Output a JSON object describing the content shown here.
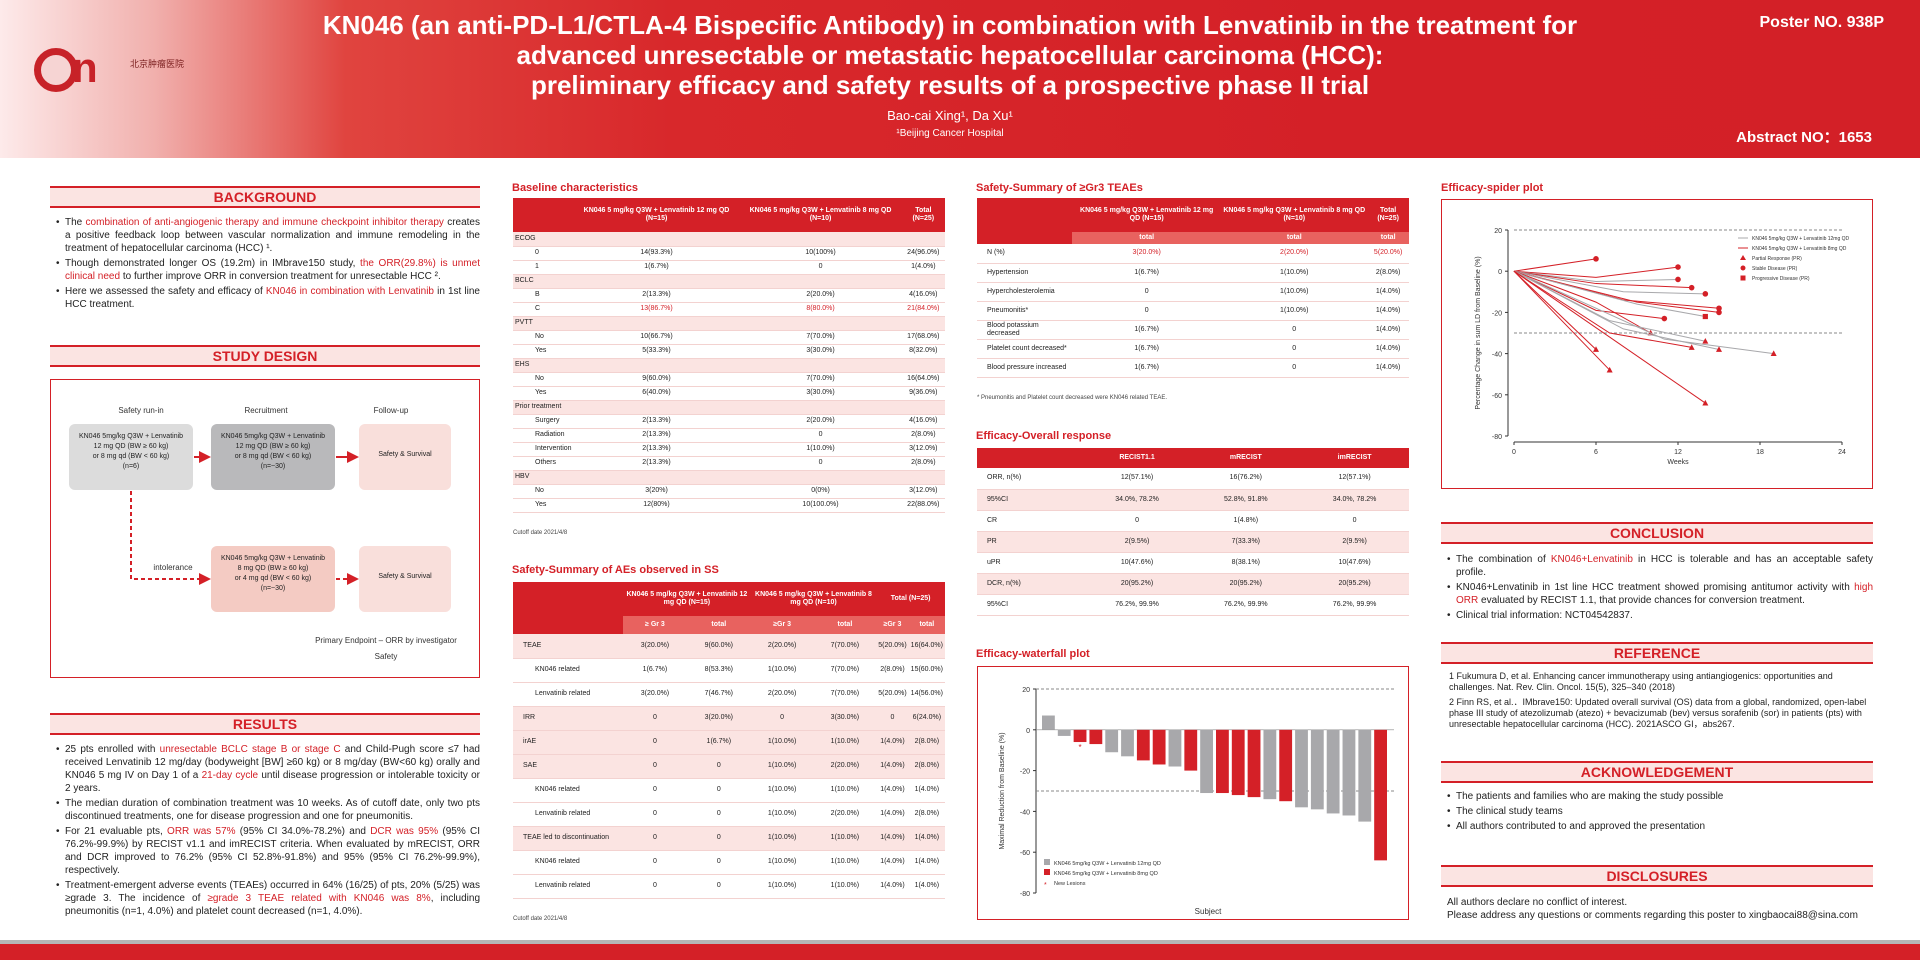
{
  "header": {
    "title_line1": "KN046 (an anti-PD-L1/CTLA-4 Bispecific Antibody) in combination with Lenvatinib in the treatment for",
    "title_line2": "advanced unresectable or metastatic hepatocellular carcinoma (HCC):",
    "title_line3": "preliminary efficacy and safety results of a prospective phase II trial",
    "authors": "Bao-cai Xing¹, Da Xu¹",
    "affiliation": "¹Beijing Cancer Hospital",
    "poster_no": "Poster NO. 938P",
    "abstract_no": "Abstract NO：1653",
    "logo_text": "北京肿瘤医院"
  },
  "background": {
    "heading": "BACKGROUND",
    "b1_pre": "The ",
    "b1_red": "combination of anti-angiogenic therapy and immune checkpoint inhibitor therapy",
    "b1_post": " creates a positive feedback loop between vascular normalization and immune remodeling in the treatment of hepatocellular carcinoma (HCC) ¹.",
    "b2_pre": "Though demonstrated longer OS (19.2m) in IMbrave150 study, ",
    "b2_red": "the ORR(29.8%) is unmet clinical need",
    "b2_post": " to further improve ORR in conversion treatment for unresectable HCC ².",
    "b3_pre": "Here we assessed the safety and efficacy of ",
    "b3_red": "KN046 in combination with Lenvatinib",
    "b3_post": " in 1st line HCC treatment."
  },
  "study_design": {
    "heading": "STUDY DESIGN",
    "col1": "Safety run-in",
    "col2": "Recruitment",
    "col3": "Follow-up",
    "box1": [
      "KN046 5mg/kg Q3W + Lenvatinib",
      "12 mg QD (BW ≥ 60 kg)",
      "or 8 mg qd (BW < 60 kg)",
      "(n=6)"
    ],
    "box2": [
      "KN046 5mg/kg Q3W + Lenvatinib",
      "12 mg QD (BW ≥ 60 kg)",
      "or 8 mg qd (BW < 60 kg)",
      "(n=~30)"
    ],
    "box3": "Safety & Survival",
    "box4": [
      "KN046 5mg/kg Q3W + Lenvatinib",
      "8 mg QD (BW ≥ 60 kg)",
      "or 4 mg qd (BW < 60 kg)",
      "(n=~30)"
    ],
    "box5": "Safety & Survival",
    "intolerance": "intolerance",
    "endpoint1": "Primary Endpoint – ORR by investigator",
    "endpoint2": "Safety"
  },
  "results": {
    "heading": "RESULTS",
    "r1_a": "25 pts enrolled with ",
    "r1_red1": "unresectable BCLC stage B or stage C",
    "r1_b": " and Child-Pugh score ≤7 had received Lenvatinib 12 mg/day (bodyweight [BW] ≥60 kg) or 8 mg/day (BW<60 kg) orally and KN046 5 mg IV on Day 1 of a ",
    "r1_red2": "21-day cycle",
    "r1_c": " until disease progression or intolerable toxicity or 2 years.",
    "r2": "The median duration of combination treatment was 10 weeks. As of cutoff date, only two pts discontinued treatments, one for disease progression and one for pneumonitis.",
    "r3_a": "For 21 evaluable pts, ",
    "r3_red1": "ORR was 57%",
    "r3_b": " (95% CI 34.0%-78.2%) and ",
    "r3_red2": "DCR was 95%",
    "r3_c": " (95% CI 76.2%-99.9%) by RECIST v1.1 and imRECIST criteria. When evaluated by mRECIST, ORR and DCR improved to 76.2% (95% CI 52.8%-91.8%) and 95% (95% CI 76.2%-99.9%), respectively.",
    "r4_a": "Treatment-emergent adverse events (TEAEs) occurred in 64% (16/25) of pts, 20% (5/25) was ≥grade 3. The incidence of ",
    "r4_red": "≥grade 3 TEAE related with KN046 was 8%",
    "r4_b": ", including pneumonitis (n=1, 4.0%) and platelet count decreased (n=1, 4.0%)."
  },
  "baseline": {
    "title": "Baseline characteristics",
    "headers": [
      "",
      "KN046 5 mg/kg Q3W + Lenvatinib 12 mg QD (N=15)",
      "KN046 5 mg/kg Q3W + Lenvatinib 8 mg QD (N=10)",
      "Total (N=25)"
    ],
    "rows": [
      {
        "t": "sub",
        "c": [
          "ECOG",
          "",
          "",
          ""
        ]
      },
      {
        "t": "row",
        "c": [
          "0",
          "14(93.3%)",
          "10(100%)",
          "24(96.0%)"
        ]
      },
      {
        "t": "row",
        "c": [
          "1",
          "1(6.7%)",
          "0",
          "1(4.0%)"
        ]
      },
      {
        "t": "sub",
        "c": [
          "BCLC",
          "",
          "",
          ""
        ]
      },
      {
        "t": "row",
        "c": [
          "B",
          "2(13.3%)",
          "2(20.0%)",
          "4(16.0%)"
        ]
      },
      {
        "t": "rowred",
        "c": [
          "C",
          "13(86.7%)",
          "8(80.0%)",
          "21(84.0%)"
        ]
      },
      {
        "t": "sub",
        "c": [
          "PVTT",
          "",
          "",
          ""
        ]
      },
      {
        "t": "row",
        "c": [
          "No",
          "10(66.7%)",
          "7(70.0%)",
          "17(68.0%)"
        ]
      },
      {
        "t": "row",
        "c": [
          "Yes",
          "5(33.3%)",
          "3(30.0%)",
          "8(32.0%)"
        ]
      },
      {
        "t": "sub",
        "c": [
          "EHS",
          "",
          "",
          ""
        ]
      },
      {
        "t": "row",
        "c": [
          "No",
          "9(60.0%)",
          "7(70.0%)",
          "16(64.0%)"
        ]
      },
      {
        "t": "row",
        "c": [
          "Yes",
          "6(40.0%)",
          "3(30.0%)",
          "9(36.0%)"
        ]
      },
      {
        "t": "sub",
        "c": [
          "Prior treatment",
          "",
          "",
          ""
        ]
      },
      {
        "t": "row",
        "c": [
          "Surgery",
          "2(13.3%)",
          "2(20.0%)",
          "4(16.0%)"
        ]
      },
      {
        "t": "row",
        "c": [
          "Radiation",
          "2(13.3%)",
          "0",
          "2(8.0%)"
        ]
      },
      {
        "t": "row",
        "c": [
          "Intervention",
          "2(13.3%)",
          "1(10.0%)",
          "3(12.0%)"
        ]
      },
      {
        "t": "row",
        "c": [
          "Others",
          "2(13.3%)",
          "0",
          "2(8.0%)"
        ]
      },
      {
        "t": "sub",
        "c": [
          "HBV",
          "",
          "",
          ""
        ]
      },
      {
        "t": "row",
        "c": [
          "No",
          "3(20%)",
          "0(0%)",
          "3(12.0%)"
        ]
      },
      {
        "t": "row",
        "c": [
          "Yes",
          "12(80%)",
          "10(100.0%)",
          "22(88.0%)"
        ]
      }
    ],
    "note": "Cutoff date 2021/4/8"
  },
  "ae_ss": {
    "title": "Safety-Summary of AEs observed in SS",
    "group_headers": [
      "",
      "KN046 5 mg/kg Q3W + Lenvatinib 12 mg QD (N=15)",
      "KN046 5 mg/kg Q3W + Lenvatinib 8 mg QD (N=10)",
      "Total (N=25)"
    ],
    "sub_headers": [
      "≥ Gr 3",
      "total",
      "≥Gr 3",
      "total",
      "≥Gr 3",
      "total"
    ],
    "rows": [
      {
        "t": "sub",
        "c": [
          "TEAE",
          "3(20.0%)",
          "9(60.0%)",
          "2(20.0%)",
          "7(70.0%)",
          "5(20.0%)",
          "16(64.0%)"
        ]
      },
      {
        "t": "in",
        "c": [
          "KN046 related",
          "1(6.7%)",
          "8(53.3%)",
          "1(10.0%)",
          "7(70.0%)",
          "2(8.0%)",
          "15(60.0%)"
        ]
      },
      {
        "t": "in",
        "c": [
          "Lenvatinib related",
          "3(20.0%)",
          "7(46.7%)",
          "2(20.0%)",
          "7(70.0%)",
          "5(20.0%)",
          "14(56.0%)"
        ]
      },
      {
        "t": "sub",
        "c": [
          "IRR",
          "0",
          "3(20.0%)",
          "0",
          "3(30.0%)",
          "0",
          "6(24.0%)"
        ]
      },
      {
        "t": "sub",
        "c": [
          "irAE",
          "0",
          "1(6.7%)",
          "1(10.0%)",
          "1(10.0%)",
          "1(4.0%)",
          "2(8.0%)"
        ]
      },
      {
        "t": "sub",
        "c": [
          "SAE",
          "0",
          "0",
          "1(10.0%)",
          "2(20.0%)",
          "1(4.0%)",
          "2(8.0%)"
        ]
      },
      {
        "t": "in",
        "c": [
          "KN046 related",
          "0",
          "0",
          "1(10.0%)",
          "1(10.0%)",
          "1(4.0%)",
          "1(4.0%)"
        ]
      },
      {
        "t": "in",
        "c": [
          "Lenvatinib related",
          "0",
          "0",
          "1(10.0%)",
          "2(20.0%)",
          "1(4.0%)",
          "2(8.0%)"
        ]
      },
      {
        "t": "sub",
        "c": [
          "TEAE led to discontinuation",
          "0",
          "0",
          "1(10.0%)",
          "1(10.0%)",
          "1(4.0%)",
          "1(4.0%)"
        ]
      },
      {
        "t": "in",
        "c": [
          "KN046 related",
          "0",
          "0",
          "1(10.0%)",
          "1(10.0%)",
          "1(4.0%)",
          "1(4.0%)"
        ]
      },
      {
        "t": "in",
        "c": [
          "Lenvatinib related",
          "0",
          "0",
          "1(10.0%)",
          "1(10.0%)",
          "1(4.0%)",
          "1(4.0%)"
        ]
      }
    ],
    "note": "Cutoff date 2021/4/8"
  },
  "teae3": {
    "title": "Safety-Summary of ≥Gr3 TEAEs",
    "headers": [
      "",
      "KN046 5 mg/kg Q3W + Lenvatinib 12 mg QD (N=15)",
      "KN046 5 mg/kg Q3W + Lenvatinib 8 mg QD (N=10)",
      "Total (N=25)"
    ],
    "sub_headers": [
      "total",
      "total",
      "total"
    ],
    "rows": [
      {
        "t": "rowred",
        "c": [
          "N (%)",
          "3(20.0%)",
          "2(20.0%)",
          "5(20.0%)"
        ]
      },
      {
        "t": "row",
        "c": [
          "Hypertension",
          "1(6.7%)",
          "1(10.0%)",
          "2(8.0%)"
        ]
      },
      {
        "t": "row",
        "c": [
          "Hypercholesterolemia",
          "0",
          "1(10.0%)",
          "1(4.0%)"
        ]
      },
      {
        "t": "row",
        "c": [
          "Pneumonitis*",
          "0",
          "1(10.0%)",
          "1(4.0%)"
        ]
      },
      {
        "t": "row",
        "c": [
          "Blood potassium decreased",
          "1(6.7%)",
          "0",
          "1(4.0%)"
        ]
      },
      {
        "t": "row",
        "c": [
          "Platelet count decreased*",
          "1(6.7%)",
          "0",
          "1(4.0%)"
        ]
      },
      {
        "t": "row",
        "c": [
          "Blood pressure increased",
          "1(6.7%)",
          "0",
          "1(4.0%)"
        ]
      }
    ],
    "note": "* Pneumonitis and Platelet count decreased were KN046 related TEAE."
  },
  "overall": {
    "title": "Efficacy-Overall response",
    "headers": [
      "",
      "RECIST1.1",
      "mRECIST",
      "imRECIST"
    ],
    "rows": [
      {
        "t": "row",
        "c": [
          "ORR, n(%)",
          "12(57.1%)",
          "16(76.2%)",
          "12(57.1%)"
        ]
      },
      {
        "t": "sub",
        "c": [
          "95%CI",
          "34.0%, 78.2%",
          "52.8%, 91.8%",
          "34.0%, 78.2%"
        ]
      },
      {
        "t": "row",
        "c": [
          "CR",
          "0",
          "1(4.8%)",
          "0"
        ]
      },
      {
        "t": "sub",
        "c": [
          "PR",
          "2(9.5%)",
          "7(33.3%)",
          "2(9.5%)"
        ]
      },
      {
        "t": "row",
        "c": [
          "uPR",
          "10(47.6%)",
          "8(38.1%)",
          "10(47.6%)"
        ]
      },
      {
        "t": "sub",
        "c": [
          "DCR, n(%)",
          "20(95.2%)",
          "20(95.2%)",
          "20(95.2%)"
        ]
      },
      {
        "t": "row",
        "c": [
          "95%CI",
          "76.2%, 99.9%",
          "76.2%, 99.9%",
          "76.2%, 99.9%"
        ]
      }
    ]
  },
  "conclusion": {
    "heading": "CONCLUSION",
    "c1_a": "The combination of ",
    "c1_red": "KN046+Lenvatinib",
    "c1_b": " in HCC is tolerable and has an acceptable safety profile.",
    "c2_a": "KN046+Lenvatinib in 1st line HCC treatment showed promising antitumor activity with ",
    "c2_red": "high ORR",
    "c2_b": " evaluated by RECIST 1.1, that provide chances for conversion treatment.",
    "c3": "Clinical trial information: NCT04542837."
  },
  "reference": {
    "heading": "REFERENCE",
    "r1": "1  Fukumura D, et al. Enhancing cancer immunotherapy using antiangiogenics: opportunities and challenges. Nat. Rev. Clin. Oncol. 15(5), 325–340 (2018)",
    "r2": "2  Finn RS, et al.．IMbrave150: Updated overall survival (OS) data from a global, randomized, open-label phase III study of atezolizumab (atezo) + bevacizumab (bev) versus sorafenib (sor) in patients (pts) with unresectable hepatocellular carcinoma (HCC). 2021ASCO GI，abs267."
  },
  "acknowledgement": {
    "heading": "ACKNOWLEDGEMENT",
    "a1": "The patients and families who are making the study possible",
    "a2": "The clinical study teams",
    "a3": "All authors contributed to and approved the presentation"
  },
  "disclosures": {
    "heading": "DISCLOSURES",
    "d1": "All authors declare no conflict of interest.",
    "d2": "Please address any questions or comments regarding this poster to xingbaocai88@sina.com"
  },
  "chart_data": [
    {
      "type": "bar",
      "title": "Efficacy-waterfall plot",
      "xlabel": "Subject",
      "ylabel": "Maximal Reduction from Baseline (%)",
      "ylim": [
        -80,
        20
      ],
      "yticks": [
        20,
        0,
        -20,
        -40,
        -60,
        -80
      ],
      "reference_lines": [
        20,
        -30
      ],
      "series": [
        {
          "name": "KN046 5mg/kg Q3W + Lenvatinib 12mg QD",
          "color": "#a8a8ab"
        },
        {
          "name": "KN046 5mg/kg Q3W + Lenvatinib 8mg QD",
          "color": "#d42027"
        }
      ],
      "legend_extra": "New Lesions",
      "bars": [
        {
          "v": 7,
          "g": 0
        },
        {
          "v": -3,
          "g": 0
        },
        {
          "v": -6,
          "g": 1,
          "new": true
        },
        {
          "v": -7,
          "g": 1
        },
        {
          "v": -11,
          "g": 0
        },
        {
          "v": -13,
          "g": 0
        },
        {
          "v": -15,
          "g": 1
        },
        {
          "v": -17,
          "g": 1
        },
        {
          "v": -18,
          "g": 0
        },
        {
          "v": -20,
          "g": 1
        },
        {
          "v": -31,
          "g": 0
        },
        {
          "v": -31,
          "g": 1
        },
        {
          "v": -32,
          "g": 1
        },
        {
          "v": -33,
          "g": 1
        },
        {
          "v": -34,
          "g": 0
        },
        {
          "v": -35,
          "g": 1
        },
        {
          "v": -38,
          "g": 0
        },
        {
          "v": -39,
          "g": 0
        },
        {
          "v": -41,
          "g": 0
        },
        {
          "v": -42,
          "g": 0
        },
        {
          "v": -45,
          "g": 0
        },
        {
          "v": -64,
          "g": 1
        }
      ]
    },
    {
      "type": "line",
      "title": "Efficacy-spider plot",
      "xlabel": "Weeks",
      "ylabel": "Percentage Change in sum LD from Baseline (%)",
      "xlim": [
        0,
        24
      ],
      "ylim": [
        -80,
        20
      ],
      "xticks": [
        0,
        6,
        12,
        18,
        24
      ],
      "yticks": [
        20,
        0,
        -20,
        -40,
        -60,
        -80
      ],
      "reference_lines": [
        20,
        -30
      ],
      "legend": [
        {
          "name": "KN046 5mg/kg Q3W + Lenvatinib 12mg QD",
          "kind": "line",
          "color": "#a8a8ab"
        },
        {
          "name": "KN046 5mg/kg Q3W + Lenvatinib 8mg QD",
          "kind": "line",
          "color": "#d42027"
        },
        {
          "name": "Partial Response (PR)",
          "kind": "triangle",
          "color": "#d42027"
        },
        {
          "name": "Stable Disease (PR)",
          "kind": "circle",
          "color": "#d42027"
        },
        {
          "name": "Progressive Disease (PR)",
          "kind": "square",
          "color": "#d42027"
        }
      ],
      "series": [
        {
          "g": 1,
          "x": [
            0,
            6
          ],
          "y": [
            0,
            6
          ],
          "m": "circle"
        },
        {
          "g": 1,
          "x": [
            0,
            6,
            12
          ],
          "y": [
            0,
            -3,
            2
          ],
          "m": "circle"
        },
        {
          "g": 0,
          "x": [
            0,
            6,
            12
          ],
          "y": [
            0,
            -5,
            -4
          ],
          "m": "circle"
        },
        {
          "g": 1,
          "x": [
            0,
            6,
            13
          ],
          "y": [
            0,
            -6,
            -8
          ],
          "m": "circle"
        },
        {
          "g": 0,
          "x": [
            0,
            8,
            14
          ],
          "y": [
            0,
            -10,
            -11
          ],
          "m": "circle"
        },
        {
          "g": 1,
          "x": [
            0,
            8,
            15
          ],
          "y": [
            0,
            -14,
            -18
          ],
          "m": "circle"
        },
        {
          "g": 1,
          "x": [
            0,
            9,
            15
          ],
          "y": [
            0,
            -15,
            -20
          ],
          "m": "circle"
        },
        {
          "g": 0,
          "x": [
            0,
            9,
            14
          ],
          "y": [
            0,
            -16,
            -22
          ],
          "m": "square"
        },
        {
          "g": 1,
          "x": [
            0,
            6,
            11
          ],
          "y": [
            0,
            -19,
            -23
          ],
          "m": "circle"
        },
        {
          "g": 1,
          "x": [
            0,
            6,
            10
          ],
          "y": [
            0,
            -15,
            -30
          ],
          "m": "triangle"
        },
        {
          "g": 0,
          "x": [
            0,
            7,
            14
          ],
          "y": [
            0,
            -24,
            -34
          ],
          "m": "triangle"
        },
        {
          "g": 0,
          "x": [
            0,
            8,
            15
          ],
          "y": [
            0,
            -28,
            -38
          ],
          "m": "triangle"
        },
        {
          "g": 0,
          "x": [
            0,
            11,
            19
          ],
          "y": [
            0,
            -33,
            -40
          ],
          "m": "triangle"
        },
        {
          "g": 1,
          "x": [
            0,
            7,
            13
          ],
          "y": [
            0,
            -30,
            -37
          ],
          "m": "triangle"
        },
        {
          "g": 1,
          "x": [
            0,
            6
          ],
          "y": [
            0,
            -38
          ],
          "m": "triangle"
        },
        {
          "g": 1,
          "x": [
            0,
            7
          ],
          "y": [
            0,
            -48
          ],
          "m": "triangle"
        },
        {
          "g": 1,
          "x": [
            0,
            14
          ],
          "y": [
            0,
            -64
          ],
          "m": "triangle"
        }
      ]
    }
  ]
}
